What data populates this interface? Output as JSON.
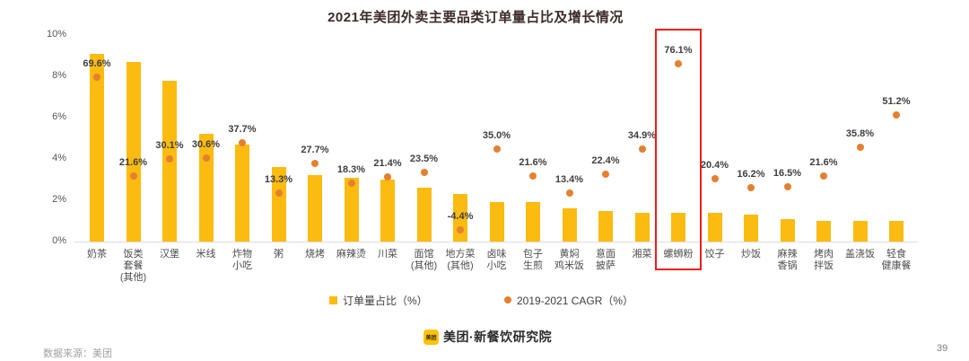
{
  "chart_data": {
    "type": "bar",
    "title": "2021年美团外卖主要品类订单量占比及增长情况",
    "categories": [
      "奶茶",
      "饭类\n套餐\n(其他)",
      "汉堡",
      "米线",
      "炸物\n小吃",
      "粥",
      "烧烤",
      "麻辣烫",
      "川菜",
      "面馆\n(其他)",
      "地方菜\n(其他)",
      "卤味\n小吃",
      "包子\n生煎",
      "黄焖\n鸡米饭",
      "意面\n披萨",
      "湘菜",
      "螺蛳粉",
      "饺子",
      "炒饭",
      "麻辣\n香锅",
      "烤肉\n拌饭",
      "盖浇饭",
      "轻食\n健康餐"
    ],
    "series": [
      {
        "name": "订单量占比（%）",
        "type": "bar",
        "color": "#fbbb10",
        "values": [
          9.1,
          8.7,
          7.8,
          5.2,
          4.7,
          3.6,
          3.2,
          3.1,
          3.0,
          2.6,
          2.3,
          1.9,
          1.9,
          1.6,
          1.5,
          1.4,
          1.4,
          1.4,
          1.3,
          1.1,
          1.0,
          1.0,
          1.0
        ]
      },
      {
        "name": "2019-2021 CAGR（%）",
        "type": "scatter",
        "color": "#e5802f",
        "values": [
          69.6,
          21.6,
          30.1,
          30.6,
          37.7,
          13.3,
          27.7,
          18.3,
          21.4,
          23.5,
          -4.4,
          35.0,
          21.6,
          13.4,
          22.4,
          34.9,
          76.1,
          20.4,
          16.2,
          16.5,
          21.6,
          35.8,
          51.2
        ],
        "labels": [
          "69.6%",
          "21.6%",
          "30.1%",
          "30.6%",
          "37.7%",
          "13.3%",
          "27.7%",
          "18.3%",
          "21.4%",
          "23.5%",
          "-4.4%",
          "35.0%",
          "21.6%",
          "13.4%",
          "22.4%",
          "34.9%",
          "76.1%",
          "20.4%",
          "16.2%",
          "16.5%",
          "21.6%",
          "35.8%",
          "51.2%"
        ],
        "axis_range": [
          -10,
          90
        ]
      }
    ],
    "ylim": [
      0,
      10
    ],
    "yticks": [
      "0%",
      "2%",
      "4%",
      "6%",
      "8%",
      "10%"
    ],
    "grid": false,
    "legend_position": "bottom-center",
    "highlight": {
      "category": "螺蛳粉",
      "box_color": "#f21c1c"
    }
  },
  "legend": {
    "bar_label": "订单量占比（%）",
    "dot_label": "2019-2021 CAGR（%）"
  },
  "footer": {
    "source_note": "数据来源：美团",
    "logo_text": "美团",
    "brand_name": "美团·新餐饮研究院",
    "page_number": "39"
  }
}
